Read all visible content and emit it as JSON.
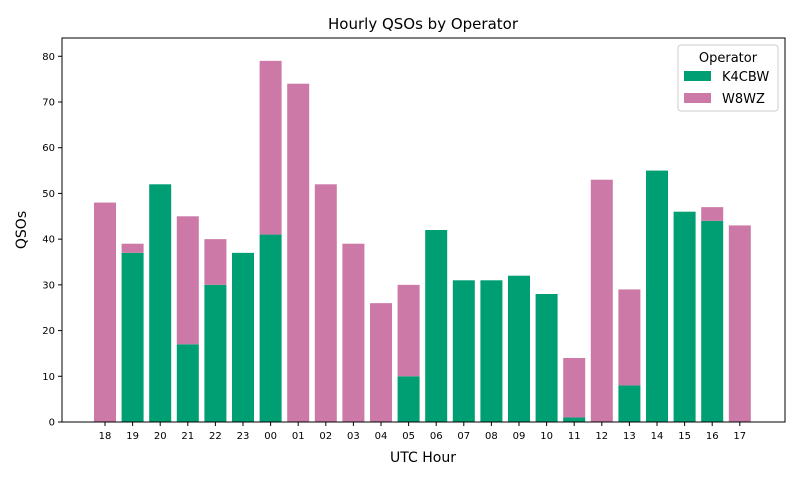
{
  "chart_data": {
    "type": "bar",
    "stacked": true,
    "title": "Hourly QSOs by Operator",
    "xlabel": "UTC Hour",
    "ylabel": "QSOs",
    "ylim": [
      0,
      84
    ],
    "yticks": [
      0,
      10,
      20,
      30,
      40,
      50,
      60,
      70,
      80
    ],
    "grid": false,
    "legend": {
      "title": "Operator",
      "placement": "top-right"
    },
    "categories": [
      "18",
      "19",
      "20",
      "21",
      "22",
      "23",
      "00",
      "01",
      "02",
      "03",
      "04",
      "05",
      "06",
      "07",
      "08",
      "09",
      "10",
      "11",
      "12",
      "13",
      "14",
      "15",
      "16",
      "17"
    ],
    "series": [
      {
        "name": "K4CBW",
        "color": "#009e73",
        "values": [
          0,
          37,
          52,
          17,
          30,
          37,
          41,
          0,
          0,
          0,
          0,
          10,
          42,
          31,
          31,
          32,
          28,
          1,
          0,
          8,
          55,
          46,
          44,
          0
        ]
      },
      {
        "name": "W8WZ",
        "color": "#cc79a7",
        "values": [
          48,
          2,
          0,
          28,
          10,
          0,
          38,
          74,
          52,
          39,
          26,
          20,
          0,
          0,
          0,
          0,
          0,
          13,
          53,
          21,
          0,
          0,
          3,
          43
        ]
      }
    ]
  }
}
